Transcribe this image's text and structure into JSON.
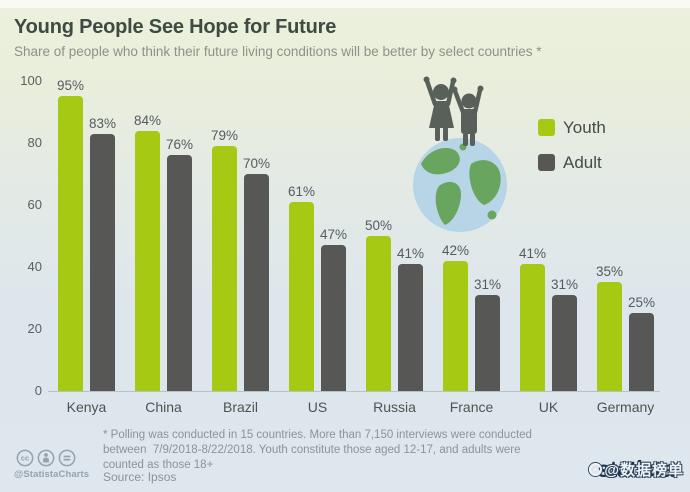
{
  "header": {
    "title": "Young People See Hope for Future",
    "subtitle": "Share of people who think their future living conditions will be better by select countries *"
  },
  "chart_data": {
    "type": "bar",
    "title": "Young People See Hope for Future",
    "categories": [
      "Kenya",
      "China",
      "Brazil",
      "US",
      "Russia",
      "France",
      "UK",
      "Germany"
    ],
    "series": [
      {
        "name": "Youth",
        "color": "#a6c913",
        "values": [
          95,
          84,
          79,
          61,
          50,
          42,
          41,
          35
        ]
      },
      {
        "name": "Adult",
        "color": "#575756",
        "values": [
          83,
          76,
          70,
          47,
          41,
          31,
          31,
          25
        ]
      }
    ],
    "value_suffix": "%",
    "xlabel": "",
    "ylabel": "",
    "ylim": [
      0,
      100
    ],
    "yticks": [
      0,
      20,
      40,
      60,
      80,
      100
    ],
    "grid": false,
    "legend_position": "right"
  },
  "illustration": {
    "name": "children-on-globe-illustration",
    "description": "two child silhouettes with raised arms standing on a globe",
    "globe_sea_color": "#b7d5e6",
    "globe_land_color": "#68a55f",
    "silhouette_color": "#59605a"
  },
  "footer": {
    "footnote": "* Polling was conducted in 15 countries. More than 7,150 interviews were conducted\nbetween  7/9/2018-8/22/2018. Youth constitute those aged 12-17, and adults were\ncounted as those 18+",
    "source": "Source: Ipsos",
    "cc_handle": "@StatistaCharts",
    "cc_icons": [
      "cc-icon",
      "attribution-icon",
      "no-derivatives-icon"
    ],
    "brand": "statista",
    "watermark": "@数据榜单"
  },
  "colors": {
    "youth_bar": "#a6c913",
    "adult_bar": "#575756",
    "background_top": "#ecf1dd",
    "background_bottom": "#dde7ed",
    "title_text": "#3f4a42",
    "subtitle_text": "#8b9386",
    "axis_line": "#b9c1c1",
    "brand_navy": "#16304e"
  }
}
